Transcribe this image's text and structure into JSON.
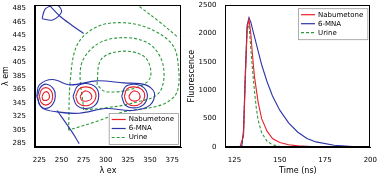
{
  "chart_data": [
    {
      "type": "contour",
      "x_label": "λ ex",
      "y_label": "λ em",
      "xlim": [
        220,
        385
      ],
      "xticks": [
        225,
        250,
        275,
        300,
        325,
        350,
        375
      ],
      "ylim": [
        280,
        490
      ],
      "yticks": [
        285,
        305,
        325,
        345,
        365,
        385,
        405,
        425,
        445,
        465,
        485
      ],
      "grid": false,
      "legend": "lower right",
      "series": [
        {
          "name": "Nabumetone",
          "color": "#e8202a",
          "line_style": "solid",
          "contours": [
            [
              [
                225,
                355
              ],
              [
                227,
                364
              ],
              [
                232,
                368
              ],
              [
                238,
                364
              ],
              [
                240,
                355
              ],
              [
                238,
                346
              ],
              [
                232,
                342
              ],
              [
                227,
                346
              ],
              [
                225,
                355
              ]
            ],
            [
              [
                228,
                355
              ],
              [
                230,
                360
              ],
              [
                233,
                362
              ],
              [
                236,
                358
              ],
              [
                236,
                352
              ],
              [
                233,
                349
              ],
              [
                229,
                350
              ],
              [
                228,
                355
              ]
            ],
            [
              [
                266,
                355
              ],
              [
                270,
                366
              ],
              [
                278,
                369
              ],
              [
                286,
                365
              ],
              [
                289,
                355
              ],
              [
                285,
                345
              ],
              [
                277,
                341
              ],
              [
                269,
                345
              ],
              [
                266,
                355
              ]
            ],
            [
              [
                271,
                355
              ],
              [
                274,
                361
              ],
              [
                278,
                363
              ],
              [
                283,
                359
              ],
              [
                284,
                352
              ],
              [
                279,
                348
              ],
              [
                273,
                349
              ],
              [
                271,
                355
              ]
            ],
            [
              [
                321,
                355
              ],
              [
                324,
                366
              ],
              [
                332,
                369
              ],
              [
                341,
                365
              ],
              [
                344,
                355
              ],
              [
                340,
                345
              ],
              [
                332,
                341
              ],
              [
                324,
                345
              ],
              [
                321,
                355
              ]
            ],
            [
              [
                326,
                355
              ],
              [
                329,
                361
              ],
              [
                333,
                363
              ],
              [
                338,
                359
              ],
              [
                338,
                351
              ],
              [
                333,
                348
              ],
              [
                328,
                350
              ],
              [
                326,
                355
              ]
            ]
          ]
        },
        {
          "name": "6-MNA",
          "color": "#2b35a8",
          "line_style": "solid",
          "contours": [
            [
              [
                222,
                355
              ],
              [
                225,
                372
              ],
              [
                240,
                380
              ],
              [
                260,
                372
              ],
              [
                290,
                378
              ],
              [
                320,
                375
              ],
              [
                345,
                372
              ],
              [
                355,
                360
              ],
              [
                350,
                342
              ],
              [
                330,
                334
              ],
              [
                300,
                337
              ],
              [
                270,
                330
              ],
              [
                245,
                332
              ],
              [
                228,
                338
              ],
              [
                222,
                355
              ]
            ],
            [
              [
                223,
                355
              ],
              [
                226,
                368
              ],
              [
                233,
                373
              ],
              [
                241,
                366
              ],
              [
                243,
                355
              ],
              [
                240,
                343
              ],
              [
                232,
                337
              ],
              [
                225,
                343
              ],
              [
                223,
                355
              ]
            ],
            [
              [
                263,
                355
              ],
              [
                268,
                370
              ],
              [
                278,
                374
              ],
              [
                289,
                368
              ],
              [
                292,
                355
              ],
              [
                288,
                342
              ],
              [
                277,
                337
              ],
              [
                267,
                342
              ],
              [
                263,
                355
              ]
            ],
            [
              [
                318,
                355
              ],
              [
                322,
                369
              ],
              [
                332,
                373
              ],
              [
                343,
                368
              ],
              [
                347,
                355
              ],
              [
                342,
                342
              ],
              [
                332,
                338
              ],
              [
                322,
                342
              ],
              [
                318,
                355
              ]
            ],
            [
              [
                228,
                470
              ],
              [
                232,
                485
              ],
              [
                245,
                490
              ],
              [
                250,
                480
              ],
              [
                240,
                468
              ],
              [
                228,
                470
              ]
            ],
            [
              [
                236,
                490
              ],
              [
                248,
                474
              ],
              [
                262,
                460
              ],
              [
                275,
                448
              ]
            ],
            [
              [
                245,
                334
              ],
              [
                262,
                302
              ],
              [
                270,
                285
              ]
            ]
          ]
        },
        {
          "name": "Urine",
          "color": "#2e9a3a",
          "line_style": "dashed",
          "contours": [
            [
              [
                258,
                305
              ],
              [
                260,
                380
              ],
              [
                268,
                432
              ],
              [
                290,
                458
              ],
              [
                320,
                464
              ],
              [
                350,
                455
              ],
              [
                375,
                432
              ],
              [
                382,
                400
              ],
              [
                380,
                360
              ],
              [
                362,
                342
              ],
              [
                320,
                332
              ],
              [
                290,
                318
              ],
              [
                258,
                305
              ]
            ],
            [
              [
                275,
                335
              ],
              [
                272,
                400
              ],
              [
                290,
                432
              ],
              [
                320,
                442
              ],
              [
                350,
                432
              ],
              [
                365,
                400
              ],
              [
                360,
                360
              ],
              [
                330,
                345
              ],
              [
                300,
                338
              ],
              [
                275,
                335
              ]
            ],
            [
              [
                290,
                372
              ],
              [
                295,
                410
              ],
              [
                320,
                422
              ],
              [
                345,
                412
              ],
              [
                350,
                382
              ],
              [
                330,
                366
              ],
              [
                300,
                362
              ],
              [
                290,
                372
              ]
            ],
            [
              [
                338,
                488
              ],
              [
                360,
                466
              ],
              [
                382,
                442
              ]
            ]
          ]
        }
      ]
    },
    {
      "type": "line",
      "x_label": "Time (ns)",
      "y_label": "Fluorescence",
      "xlim": [
        120,
        200
      ],
      "xticks": [
        125,
        150,
        175,
        200
      ],
      "ylim": [
        0,
        2500
      ],
      "yticks": [
        0,
        500,
        1000,
        1500,
        2000,
        2500
      ],
      "grid": false,
      "legend": "upper right",
      "marker": "none",
      "series": [
        {
          "name": "Nabumetone",
          "color": "#e8202a",
          "line_style": "solid",
          "x": [
            120,
            128,
            130,
            131,
            132,
            133,
            134,
            135,
            136,
            138,
            140,
            143,
            146,
            150,
            155,
            160,
            170,
            200
          ],
          "values": [
            0,
            0,
            200,
            1200,
            2100,
            2250,
            2000,
            1600,
            1250,
            800,
            500,
            280,
            150,
            80,
            40,
            20,
            5,
            0
          ]
        },
        {
          "name": "6-MNA",
          "color": "#2b35a8",
          "line_style": "solid",
          "x": [
            120,
            129,
            130,
            131,
            132,
            133,
            134,
            136,
            138,
            140,
            143,
            146,
            150,
            155,
            160,
            165,
            170,
            180,
            190,
            200
          ],
          "values": [
            0,
            0,
            300,
            1300,
            2150,
            2280,
            2200,
            1950,
            1700,
            1450,
            1150,
            900,
            650,
            420,
            260,
            150,
            90,
            30,
            10,
            0
          ]
        },
        {
          "name": "Urine",
          "color": "#2e9a3a",
          "line_style": "dashed",
          "x": [
            120,
            129,
            130,
            131,
            132,
            133,
            134,
            135,
            136,
            137,
            138,
            140,
            143,
            146,
            150,
            160,
            200
          ],
          "values": [
            0,
            0,
            250,
            1300,
            2100,
            2150,
            1750,
            1350,
            1000,
            700,
            480,
            250,
            100,
            40,
            10,
            0,
            0
          ]
        }
      ]
    }
  ]
}
